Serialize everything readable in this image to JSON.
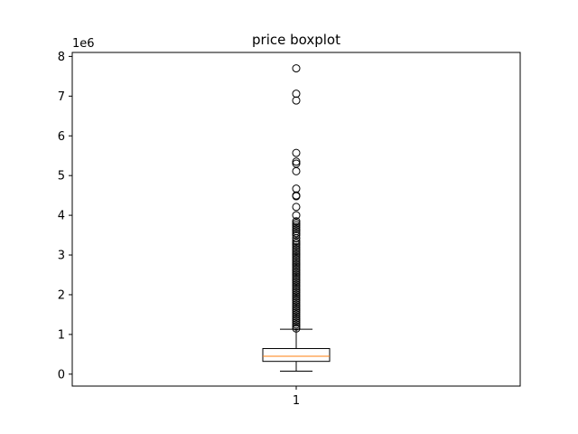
{
  "chart_data": {
    "type": "box",
    "title": "price boxplot",
    "xlabel": "",
    "ylabel": "",
    "y_offset_label": "1e6",
    "categories": [
      "1"
    ],
    "ylim": [
      -300000,
      8100000
    ],
    "y_ticks": [
      0,
      1000000,
      2000000,
      3000000,
      4000000,
      5000000,
      6000000,
      7000000,
      8000000
    ],
    "y_tick_labels": [
      "0",
      "1",
      "2",
      "3",
      "4",
      "5",
      "6",
      "7",
      "8"
    ],
    "box": {
      "whisker_low": 75000,
      "q1": 322000,
      "median": 450000,
      "q3": 645000,
      "whisker_high": 1130000
    },
    "outliers": [
      7700000,
      7060000,
      6890000,
      5570000,
      5350000,
      5300000,
      5110000,
      4670000,
      4500000,
      4480000,
      4210000,
      4000000,
      3850000,
      3800000,
      3750000,
      3700000,
      3650000,
      3600000,
      3550000,
      3500000,
      3420000,
      3350000,
      3300000,
      3250000,
      3200000,
      3150000,
      3100000,
      3050000,
      3000000,
      2950000,
      2900000,
      2850000,
      2800000,
      2750000,
      2700000,
      2650000,
      2600000,
      2550000,
      2500000,
      2450000,
      2400000,
      2350000,
      2300000,
      2250000,
      2200000,
      2150000,
      2100000,
      2050000,
      2000000,
      1950000,
      1900000,
      1850000,
      1800000,
      1750000,
      1700000,
      1650000,
      1600000,
      1550000,
      1500000,
      1450000,
      1400000,
      1350000,
      1300000,
      1250000,
      1200000,
      1150000
    ],
    "colors": {
      "box": "#000000",
      "median": "#ff7f0e",
      "flier_edge": "#000000"
    },
    "grid": false,
    "legend": "none"
  }
}
